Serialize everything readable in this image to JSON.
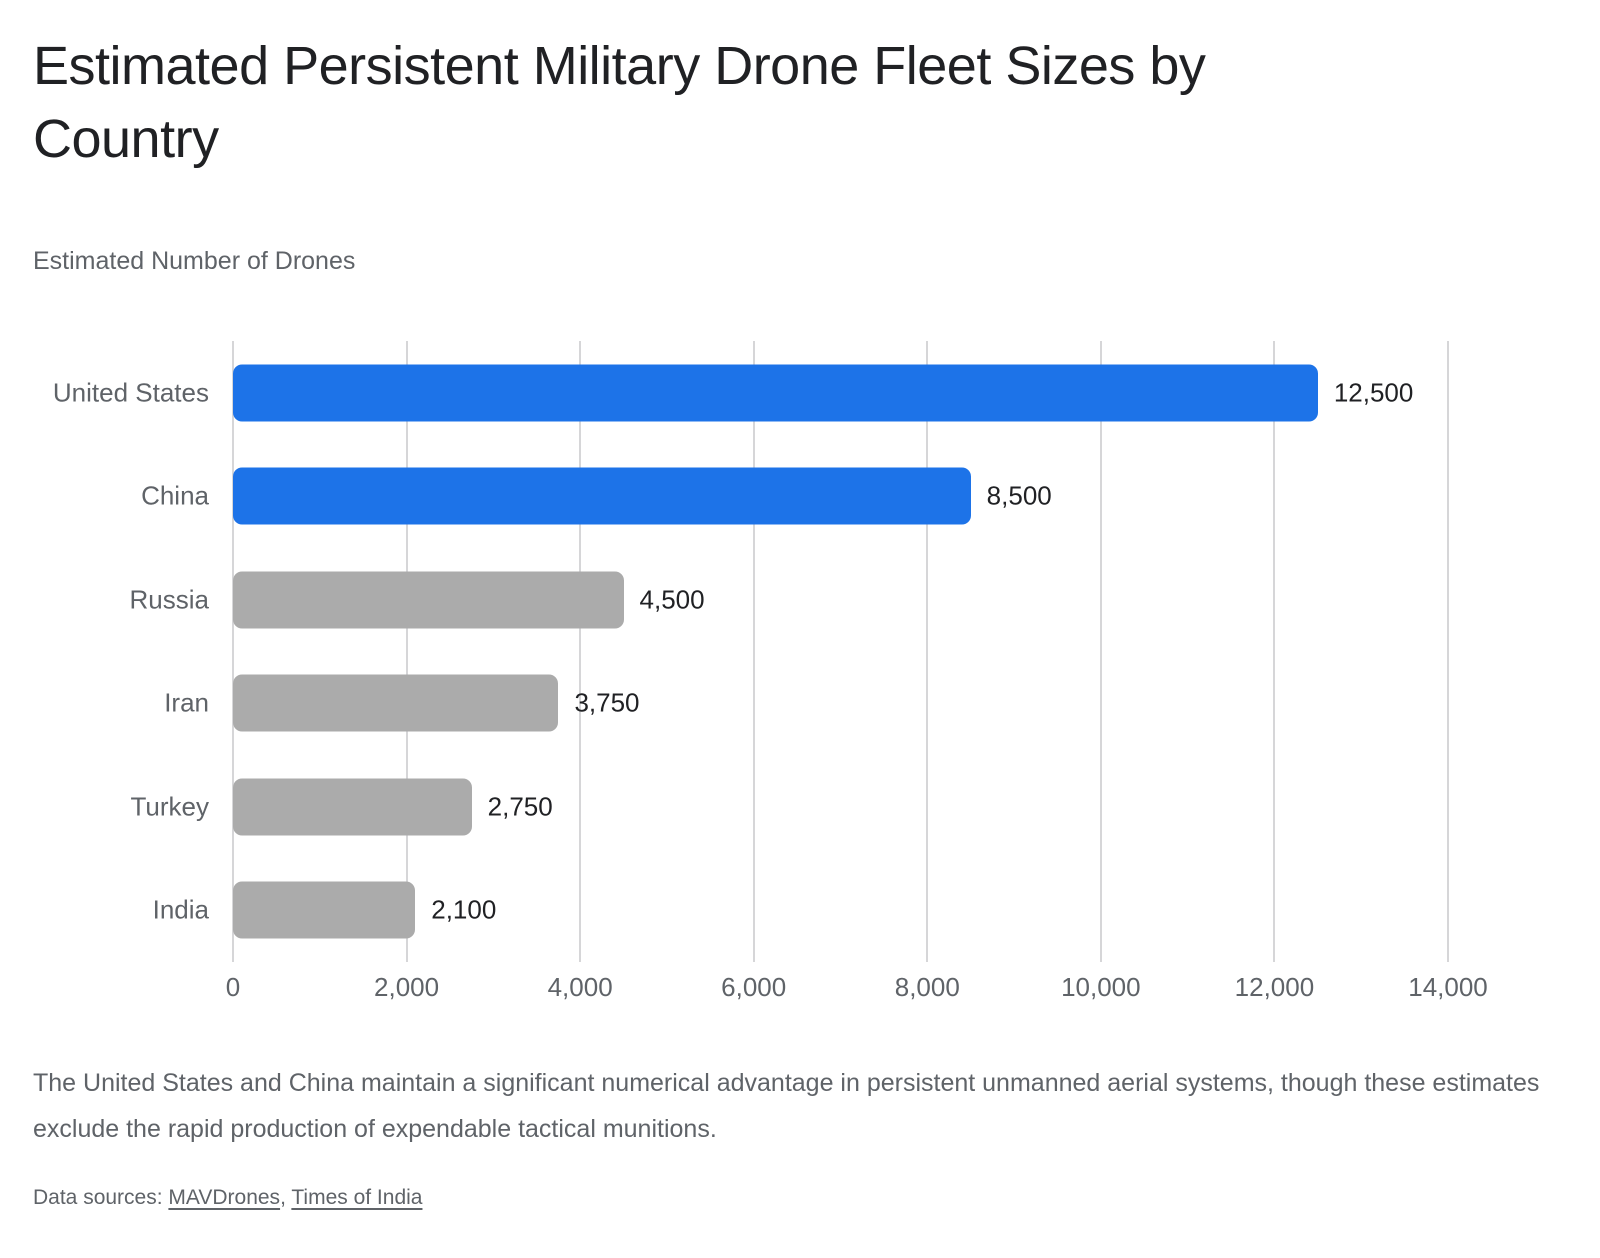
{
  "page": {
    "background": "#ffffff"
  },
  "header": {
    "title": "Estimated Persistent Military Drone Fleet Sizes by Country"
  },
  "chart_data": {
    "type": "bar",
    "orientation": "horizontal",
    "title": "Estimated Persistent Military Drone Fleet Sizes by Country",
    "axis_title": "Estimated Number of Drones",
    "categories": [
      "United States",
      "China",
      "Russia",
      "Iran",
      "Turkey",
      "India"
    ],
    "values": [
      12500,
      8500,
      4500,
      3750,
      2750,
      2100
    ],
    "value_labels": [
      "12,500",
      "8,500",
      "4,500",
      "3,750",
      "2,750",
      "2,100"
    ],
    "bar_colors": [
      "#1d73e8",
      "#1d73e8",
      "#ababab",
      "#ababab",
      "#ababab",
      "#ababab"
    ],
    "highlight_color": "#1d73e8",
    "muted_color": "#ababab",
    "xlim": [
      0,
      14000
    ],
    "x_ticks": [
      0,
      2000,
      4000,
      6000,
      8000,
      10000,
      12000,
      14000
    ],
    "x_tick_labels": [
      "0",
      "2,000",
      "4,000",
      "6,000",
      "8,000",
      "10,000",
      "12,000",
      "14,000"
    ],
    "grid": true,
    "gridline_color": "#d6d6d8",
    "legend": "none"
  },
  "footer": {
    "caption": "The United States and China maintain a significant numerical advantage in persistent unmanned aerial systems, though these estimates exclude the rapid production of expendable tactical munitions.",
    "sources_prefix": "Data sources: ",
    "sources_separator": ", ",
    "sources": [
      "MAVDrones",
      "Times of India"
    ]
  }
}
